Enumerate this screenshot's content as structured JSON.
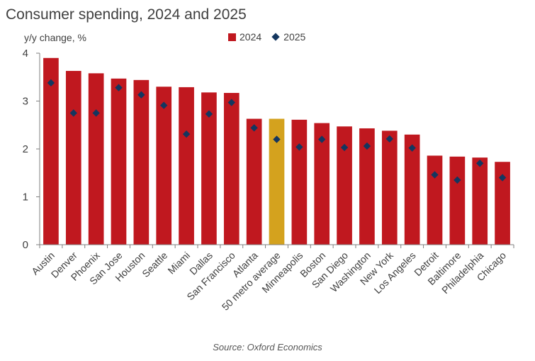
{
  "chart_data": {
    "type": "bar",
    "title": "Consumer spending, 2024 and 2025",
    "ylabel": "y/y change, %",
    "xlabel": "",
    "ylim": [
      0,
      4
    ],
    "yticks": [
      0,
      1,
      2,
      3,
      4
    ],
    "categories": [
      "Austin",
      "Denver",
      "Phoenix",
      "San Jose",
      "Houston",
      "Seattle",
      "Miami",
      "Dallas",
      "San Francisco",
      "Atlanta",
      "50 metro average",
      "Minneapolis",
      "Boston",
      "San Diego",
      "Washington",
      "New York",
      "Los Angeles",
      "Detroit",
      "Baltimore",
      "Philadelphia",
      "Chicago"
    ],
    "series": [
      {
        "name": "2024",
        "kind": "bar",
        "color": "#C0181F",
        "values": [
          3.9,
          3.63,
          3.58,
          3.47,
          3.44,
          3.3,
          3.29,
          3.18,
          3.17,
          2.63,
          2.63,
          2.61,
          2.54,
          2.47,
          2.43,
          2.38,
          2.3,
          1.86,
          1.84,
          1.82,
          1.73
        ]
      },
      {
        "name": "2025",
        "kind": "marker",
        "color": "#14365F",
        "values": [
          3.38,
          2.75,
          2.75,
          3.28,
          3.13,
          2.91,
          2.31,
          2.73,
          2.97,
          2.44,
          2.2,
          2.04,
          2.2,
          2.03,
          2.06,
          2.21,
          2.02,
          1.46,
          1.35,
          1.7,
          1.4
        ]
      }
    ],
    "highlight": {
      "category": "50 metro average",
      "color": "#D4A21E"
    },
    "legend": "top-center",
    "grid": false,
    "source": "Source: Oxford Economics"
  }
}
